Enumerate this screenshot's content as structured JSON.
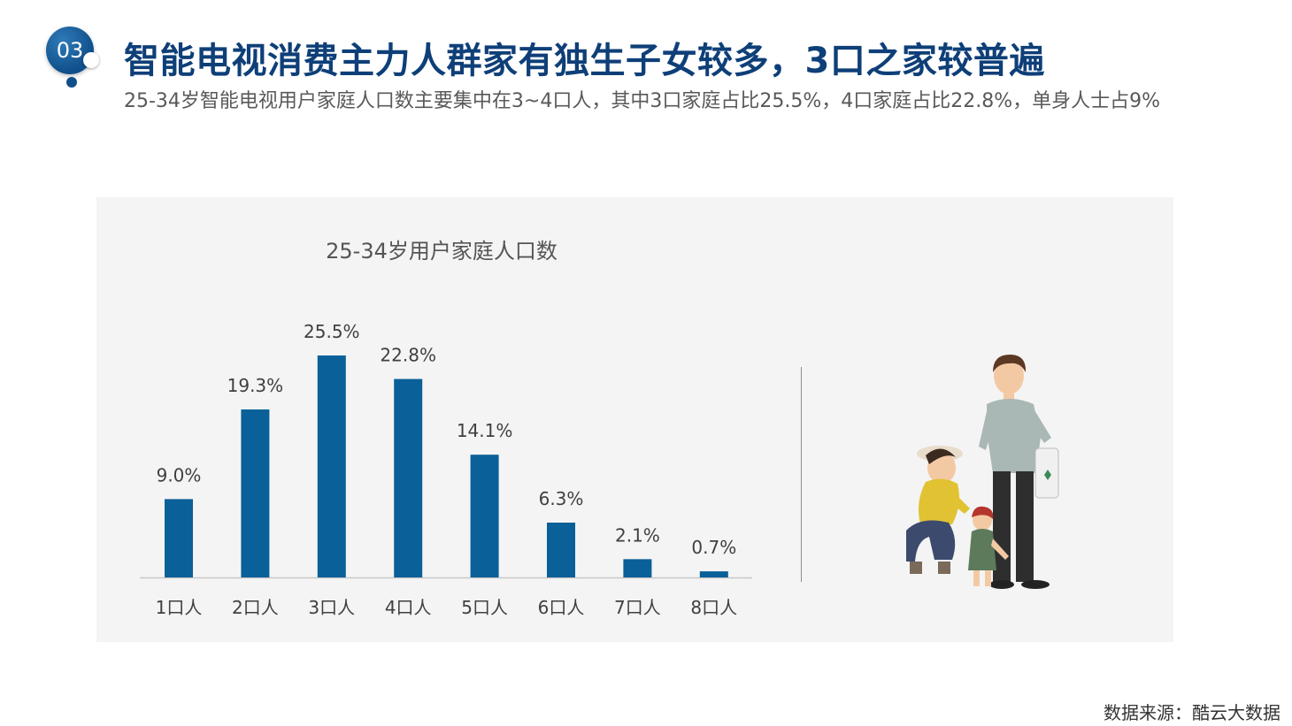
{
  "badge": {
    "number": "03"
  },
  "header": {
    "title": "智能电视消费主力人群家有独生子女较多，3口之家较普遍",
    "subtitle": "25-34岁智能电视用户家庭人口数主要集中在3~4口人，其中3口家庭占比25.5%，4口家庭占比22.8%，单身人士占9%"
  },
  "colors": {
    "accent": "#0e3f78",
    "bar": "#0a6098",
    "panel": "#f4f4f4"
  },
  "chart_data": {
    "type": "bar",
    "title": "25-34岁用户家庭人口数",
    "categories": [
      "1口人",
      "2口人",
      "3口人",
      "4口人",
      "5口人",
      "6口人",
      "7口人",
      "8口人"
    ],
    "values": [
      9.0,
      19.3,
      25.5,
      22.8,
      14.1,
      6.3,
      2.1,
      0.7
    ],
    "data_labels": [
      "9.0%",
      "19.3%",
      "25.5%",
      "22.8%",
      "14.1%",
      "6.3%",
      "2.1%",
      "0.7%"
    ],
    "xlabel": "",
    "ylabel": "",
    "ylim": [
      0,
      26
    ],
    "grid": false,
    "legend": "none"
  },
  "footer": {
    "source": "数据来源：酷云大数据"
  }
}
